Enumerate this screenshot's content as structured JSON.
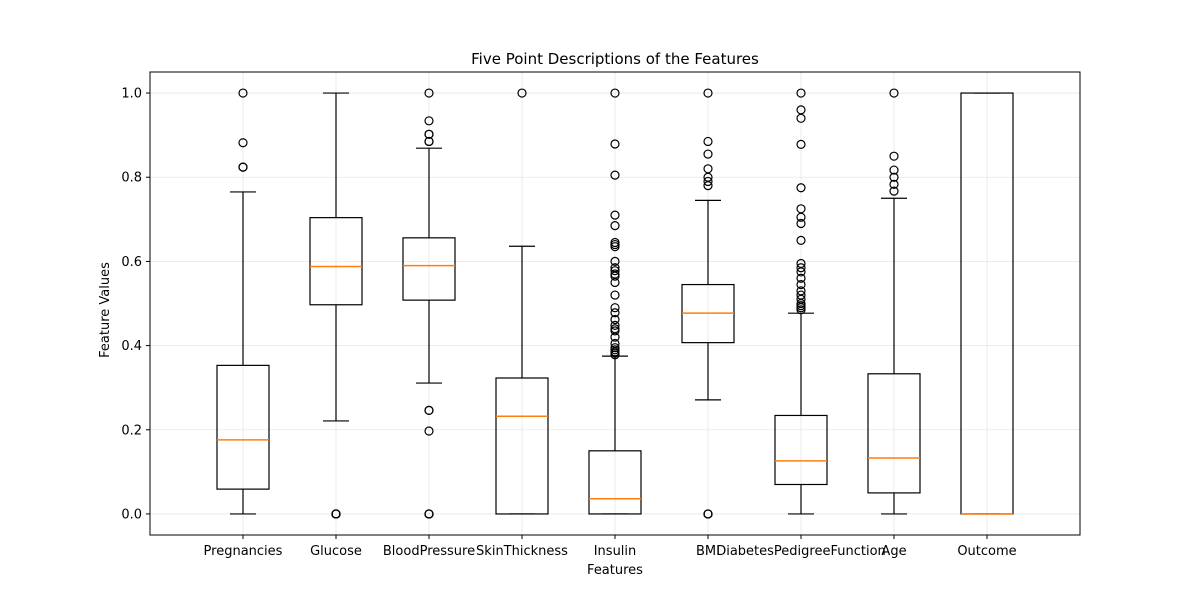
{
  "chart_data": {
    "type": "box",
    "title": "Five Point Descriptions of the Features",
    "xlabel": "Features",
    "ylabel": "Feature Values",
    "ylim": [
      -0.05,
      1.05
    ],
    "yticks": [
      "0.0",
      "0.2",
      "0.4",
      "0.6",
      "0.8",
      "1.0"
    ],
    "grid": true,
    "colors": {
      "box": "#000000",
      "median": "#ff7f0e",
      "grid": "#e6e6e6"
    },
    "categories": [
      "Pregnancies",
      "Glucose",
      "BloodPressure",
      "SkinThickness",
      "Insulin",
      "BMI",
      "DiabetesPedigreeFunction",
      "Age",
      "Outcome"
    ],
    "boxes": [
      {
        "name": "Pregnancies",
        "whisker_low": 0.0,
        "q1": 0.059,
        "median": 0.176,
        "q3": 0.353,
        "whisker_high": 0.765,
        "outliers": [
          0.824,
          0.824,
          0.882,
          1.0
        ]
      },
      {
        "name": "Glucose",
        "whisker_low": 0.221,
        "q1": 0.497,
        "median": 0.588,
        "q3": 0.704,
        "whisker_high": 1.0,
        "outliers": [
          0.0,
          0.0,
          0.0,
          0.0,
          0.0
        ]
      },
      {
        "name": "BloodPressure",
        "whisker_low": 0.311,
        "q1": 0.508,
        "median": 0.59,
        "q3": 0.656,
        "whisker_high": 0.869,
        "outliers": [
          0.0,
          0.0,
          0.0,
          0.197,
          0.246,
          0.246,
          0.885,
          0.885,
          0.902,
          0.902,
          0.934,
          1.0
        ]
      },
      {
        "name": "SkinThickness",
        "whisker_low": 0.0,
        "q1": 0.0,
        "median": 0.232,
        "q3": 0.323,
        "whisker_high": 0.636,
        "outliers": [
          1.0
        ]
      },
      {
        "name": "Insulin",
        "whisker_low": 0.0,
        "q1": 0.0,
        "median": 0.036,
        "q3": 0.15,
        "whisker_high": 0.375,
        "outliers": [
          0.378,
          0.382,
          0.385,
          0.39,
          0.395,
          0.405,
          0.42,
          0.435,
          0.44,
          0.448,
          0.462,
          0.478,
          0.49,
          0.52,
          0.55,
          0.565,
          0.57,
          0.578,
          0.585,
          0.6,
          0.635,
          0.64,
          0.645,
          0.685,
          0.71,
          0.805,
          0.879,
          1.0
        ]
      },
      {
        "name": "BMI",
        "whisker_low": 0.271,
        "q1": 0.407,
        "median": 0.477,
        "q3": 0.545,
        "whisker_high": 0.745,
        "outliers": [
          0.0,
          0.0,
          0.0,
          0.78,
          0.79,
          0.8,
          0.82,
          0.855,
          0.885,
          1.0
        ]
      },
      {
        "name": "DiabetesPedigreeFunction",
        "whisker_low": 0.0,
        "q1": 0.07,
        "median": 0.126,
        "q3": 0.234,
        "whisker_high": 0.477,
        "outliers": [
          0.485,
          0.49,
          0.495,
          0.5,
          0.51,
          0.52,
          0.53,
          0.545,
          0.56,
          0.575,
          0.585,
          0.595,
          0.65,
          0.69,
          0.705,
          0.725,
          0.775,
          0.878,
          0.94,
          0.96,
          1.0
        ]
      },
      {
        "name": "Age",
        "whisker_low": 0.0,
        "q1": 0.05,
        "median": 0.133,
        "q3": 0.333,
        "whisker_high": 0.75,
        "outliers": [
          0.767,
          0.783,
          0.8,
          0.817,
          0.85,
          1.0
        ]
      },
      {
        "name": "Outcome",
        "whisker_low": 0.0,
        "q1": 0.0,
        "median": 0.0,
        "q3": 1.0,
        "whisker_high": 1.0,
        "outliers": []
      }
    ]
  }
}
